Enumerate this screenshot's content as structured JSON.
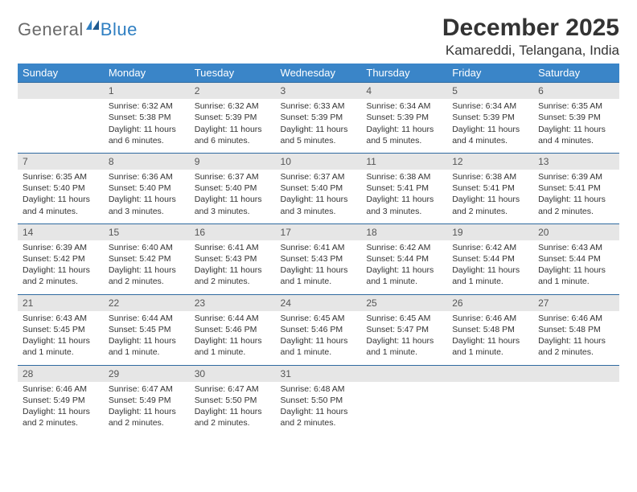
{
  "brand": {
    "general": "General",
    "blue": "Blue"
  },
  "title": "December 2025",
  "location": "Kamareddi, Telangana, India",
  "colors": {
    "header_bg": "#3a85c8",
    "header_fg": "#ffffff",
    "daynum_bg": "#e6e6e6",
    "daynum_border": "#2f6aa0",
    "logo_gray": "#6a6a6a",
    "logo_blue": "#2f7fc2"
  },
  "weekday_headers": [
    "Sunday",
    "Monday",
    "Tuesday",
    "Wednesday",
    "Thursday",
    "Friday",
    "Saturday"
  ],
  "weeks": [
    [
      {
        "n": "",
        "sr": "",
        "ss": "",
        "dl": ""
      },
      {
        "n": "1",
        "sr": "Sunrise: 6:32 AM",
        "ss": "Sunset: 5:38 PM",
        "dl": "Daylight: 11 hours and 6 minutes."
      },
      {
        "n": "2",
        "sr": "Sunrise: 6:32 AM",
        "ss": "Sunset: 5:39 PM",
        "dl": "Daylight: 11 hours and 6 minutes."
      },
      {
        "n": "3",
        "sr": "Sunrise: 6:33 AM",
        "ss": "Sunset: 5:39 PM",
        "dl": "Daylight: 11 hours and 5 minutes."
      },
      {
        "n": "4",
        "sr": "Sunrise: 6:34 AM",
        "ss": "Sunset: 5:39 PM",
        "dl": "Daylight: 11 hours and 5 minutes."
      },
      {
        "n": "5",
        "sr": "Sunrise: 6:34 AM",
        "ss": "Sunset: 5:39 PM",
        "dl": "Daylight: 11 hours and 4 minutes."
      },
      {
        "n": "6",
        "sr": "Sunrise: 6:35 AM",
        "ss": "Sunset: 5:39 PM",
        "dl": "Daylight: 11 hours and 4 minutes."
      }
    ],
    [
      {
        "n": "7",
        "sr": "Sunrise: 6:35 AM",
        "ss": "Sunset: 5:40 PM",
        "dl": "Daylight: 11 hours and 4 minutes."
      },
      {
        "n": "8",
        "sr": "Sunrise: 6:36 AM",
        "ss": "Sunset: 5:40 PM",
        "dl": "Daylight: 11 hours and 3 minutes."
      },
      {
        "n": "9",
        "sr": "Sunrise: 6:37 AM",
        "ss": "Sunset: 5:40 PM",
        "dl": "Daylight: 11 hours and 3 minutes."
      },
      {
        "n": "10",
        "sr": "Sunrise: 6:37 AM",
        "ss": "Sunset: 5:40 PM",
        "dl": "Daylight: 11 hours and 3 minutes."
      },
      {
        "n": "11",
        "sr": "Sunrise: 6:38 AM",
        "ss": "Sunset: 5:41 PM",
        "dl": "Daylight: 11 hours and 3 minutes."
      },
      {
        "n": "12",
        "sr": "Sunrise: 6:38 AM",
        "ss": "Sunset: 5:41 PM",
        "dl": "Daylight: 11 hours and 2 minutes."
      },
      {
        "n": "13",
        "sr": "Sunrise: 6:39 AM",
        "ss": "Sunset: 5:41 PM",
        "dl": "Daylight: 11 hours and 2 minutes."
      }
    ],
    [
      {
        "n": "14",
        "sr": "Sunrise: 6:39 AM",
        "ss": "Sunset: 5:42 PM",
        "dl": "Daylight: 11 hours and 2 minutes."
      },
      {
        "n": "15",
        "sr": "Sunrise: 6:40 AM",
        "ss": "Sunset: 5:42 PM",
        "dl": "Daylight: 11 hours and 2 minutes."
      },
      {
        "n": "16",
        "sr": "Sunrise: 6:41 AM",
        "ss": "Sunset: 5:43 PM",
        "dl": "Daylight: 11 hours and 2 minutes."
      },
      {
        "n": "17",
        "sr": "Sunrise: 6:41 AM",
        "ss": "Sunset: 5:43 PM",
        "dl": "Daylight: 11 hours and 1 minute."
      },
      {
        "n": "18",
        "sr": "Sunrise: 6:42 AM",
        "ss": "Sunset: 5:44 PM",
        "dl": "Daylight: 11 hours and 1 minute."
      },
      {
        "n": "19",
        "sr": "Sunrise: 6:42 AM",
        "ss": "Sunset: 5:44 PM",
        "dl": "Daylight: 11 hours and 1 minute."
      },
      {
        "n": "20",
        "sr": "Sunrise: 6:43 AM",
        "ss": "Sunset: 5:44 PM",
        "dl": "Daylight: 11 hours and 1 minute."
      }
    ],
    [
      {
        "n": "21",
        "sr": "Sunrise: 6:43 AM",
        "ss": "Sunset: 5:45 PM",
        "dl": "Daylight: 11 hours and 1 minute."
      },
      {
        "n": "22",
        "sr": "Sunrise: 6:44 AM",
        "ss": "Sunset: 5:45 PM",
        "dl": "Daylight: 11 hours and 1 minute."
      },
      {
        "n": "23",
        "sr": "Sunrise: 6:44 AM",
        "ss": "Sunset: 5:46 PM",
        "dl": "Daylight: 11 hours and 1 minute."
      },
      {
        "n": "24",
        "sr": "Sunrise: 6:45 AM",
        "ss": "Sunset: 5:46 PM",
        "dl": "Daylight: 11 hours and 1 minute."
      },
      {
        "n": "25",
        "sr": "Sunrise: 6:45 AM",
        "ss": "Sunset: 5:47 PM",
        "dl": "Daylight: 11 hours and 1 minute."
      },
      {
        "n": "26",
        "sr": "Sunrise: 6:46 AM",
        "ss": "Sunset: 5:48 PM",
        "dl": "Daylight: 11 hours and 1 minute."
      },
      {
        "n": "27",
        "sr": "Sunrise: 6:46 AM",
        "ss": "Sunset: 5:48 PM",
        "dl": "Daylight: 11 hours and 2 minutes."
      }
    ],
    [
      {
        "n": "28",
        "sr": "Sunrise: 6:46 AM",
        "ss": "Sunset: 5:49 PM",
        "dl": "Daylight: 11 hours and 2 minutes."
      },
      {
        "n": "29",
        "sr": "Sunrise: 6:47 AM",
        "ss": "Sunset: 5:49 PM",
        "dl": "Daylight: 11 hours and 2 minutes."
      },
      {
        "n": "30",
        "sr": "Sunrise: 6:47 AM",
        "ss": "Sunset: 5:50 PM",
        "dl": "Daylight: 11 hours and 2 minutes."
      },
      {
        "n": "31",
        "sr": "Sunrise: 6:48 AM",
        "ss": "Sunset: 5:50 PM",
        "dl": "Daylight: 11 hours and 2 minutes."
      },
      {
        "n": "",
        "sr": "",
        "ss": "",
        "dl": ""
      },
      {
        "n": "",
        "sr": "",
        "ss": "",
        "dl": ""
      },
      {
        "n": "",
        "sr": "",
        "ss": "",
        "dl": ""
      }
    ]
  ]
}
